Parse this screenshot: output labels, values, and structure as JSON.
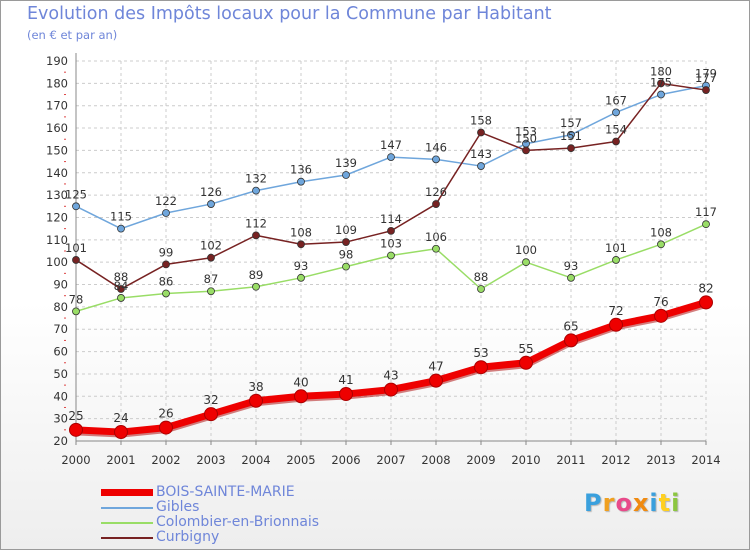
{
  "title": "Evolution des Impôts locaux pour la Commune par Habitant",
  "subtitle": "(en € et par an)",
  "logo": {
    "letters": [
      "P",
      "r",
      "o",
      "x",
      "i",
      "t",
      "i"
    ],
    "colors": [
      "#3aa0dd",
      "#f0a020",
      "#e84a8a",
      "#f08a10",
      "#3aa0dd",
      "#ffd020",
      "#8cc640"
    ]
  },
  "chart_data": {
    "type": "line",
    "title": "Evolution des Impôts locaux pour la Commune par Habitant",
    "subtitle": "(en € et par an)",
    "x": [
      "2000",
      "2001",
      "2002",
      "2003",
      "2004",
      "2005",
      "2006",
      "2007",
      "2008",
      "2009",
      "2010",
      "2011",
      "2012",
      "2013",
      "2014"
    ],
    "ylim": [
      20,
      190
    ],
    "yticks": [
      "20",
      "30",
      "40",
      "50",
      "60",
      "70",
      "80",
      "90",
      "100",
      "110",
      "120",
      "130",
      "140",
      "150",
      "160",
      "170",
      "180",
      "190"
    ],
    "grid": true,
    "legend": "bottom-left",
    "series": [
      {
        "name": "BOIS-SAINTE-MARIE",
        "color": "#ee0000",
        "values": [
          25,
          24,
          26,
          32,
          38,
          40,
          41,
          43,
          47,
          53,
          55,
          65,
          72,
          76,
          82
        ],
        "labels": [
          "25",
          "24",
          "26",
          "32",
          "38",
          "40",
          "41",
          "43",
          "47",
          "53",
          "55",
          "65",
          "72",
          "76",
          "82"
        ]
      },
      {
        "name": "Gibles",
        "color": "#6fa6dc",
        "values": [
          125,
          115,
          122,
          126,
          132,
          136,
          139,
          147,
          146,
          143,
          153,
          157,
          167,
          175,
          179
        ],
        "labels": [
          "125",
          "115",
          "122",
          "126",
          "132",
          "136",
          "139",
          "147",
          "146",
          "143",
          "153",
          "157",
          "167",
          "175",
          "179"
        ]
      },
      {
        "name": "Colombier-en-Brionnais",
        "color": "#99dd66",
        "values": [
          78,
          84,
          86,
          87,
          89,
          93,
          98,
          103,
          106,
          88,
          100,
          93,
          101,
          108,
          117
        ],
        "labels": [
          "78",
          "84",
          "86",
          "87",
          "89",
          "93",
          "98",
          "103",
          "106",
          "88",
          "100",
          "93",
          "101",
          "108",
          "117"
        ]
      },
      {
        "name": "Curbigny",
        "color": "#772222",
        "values": [
          101,
          88,
          99,
          102,
          112,
          108,
          109,
          114,
          126,
          158,
          150,
          151,
          154,
          180,
          177
        ],
        "labels": [
          "101",
          "88",
          "99",
          "102",
          "112",
          "108",
          "109",
          "114",
          "126",
          "158",
          "150",
          "151",
          "154",
          "180",
          "177"
        ]
      }
    ]
  }
}
